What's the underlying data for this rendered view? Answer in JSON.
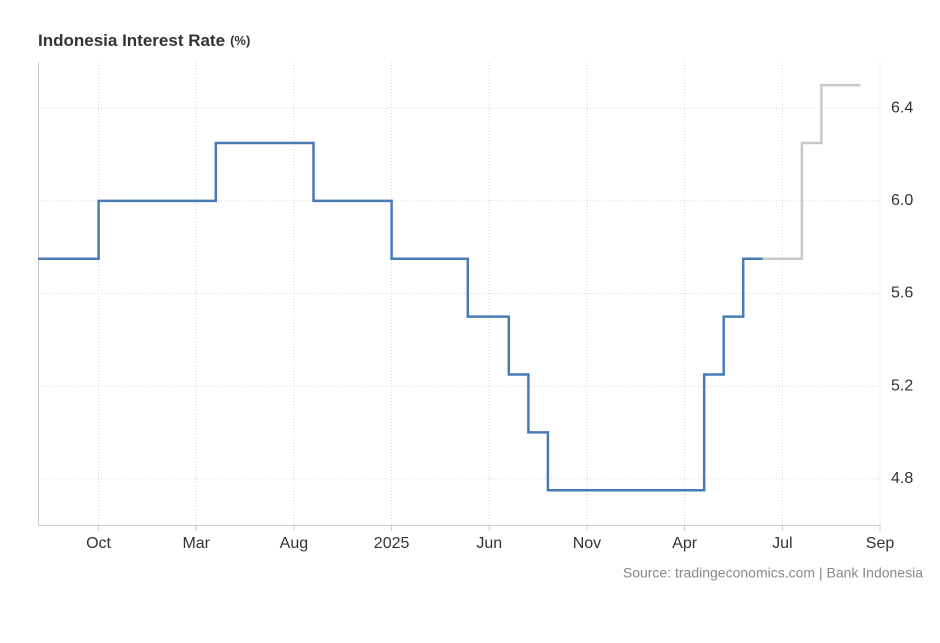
{
  "chart_data": {
    "type": "step",
    "title": "Indonesia Interest Rate",
    "title_unit": "(%)",
    "source": "Source: tradingeconomics.com | Bank Indonesia",
    "xlim": [
      -3.1,
      40
    ],
    "xticks": [
      {
        "value": 0,
        "label": "Oct"
      },
      {
        "value": 5,
        "label": "Mar"
      },
      {
        "value": 10,
        "label": "Aug"
      },
      {
        "value": 15,
        "label": "2025"
      },
      {
        "value": 20,
        "label": "Jun"
      },
      {
        "value": 25,
        "label": "Nov"
      },
      {
        "value": 30,
        "label": "Apr"
      },
      {
        "value": 35,
        "label": "Jul"
      },
      {
        "value": 40,
        "label": "Sep"
      }
    ],
    "ylim": [
      4.6,
      6.6
    ],
    "yticks": [
      4.8,
      5.2,
      5.6,
      {
        "value": 6,
        "label": "6.0"
      },
      6.4
    ],
    "grid": true,
    "y_axis_side": "right",
    "series": [
      {
        "color": "#4a7ab5",
        "x": [
          -3.1,
          0,
          6,
          11,
          15,
          18.9,
          21,
          22,
          23,
          31,
          32,
          33,
          34
        ],
        "values": [
          5.75,
          6,
          6.25,
          6,
          5.75,
          5.5,
          5.25,
          5,
          4.75,
          5.25,
          5.5,
          5.75,
          5.75
        ]
      },
      {
        "color": "#c8c8c8",
        "x": [
          34,
          36,
          37,
          39
        ],
        "values": [
          5.75,
          6.25,
          6.5,
          6.5
        ]
      }
    ]
  }
}
